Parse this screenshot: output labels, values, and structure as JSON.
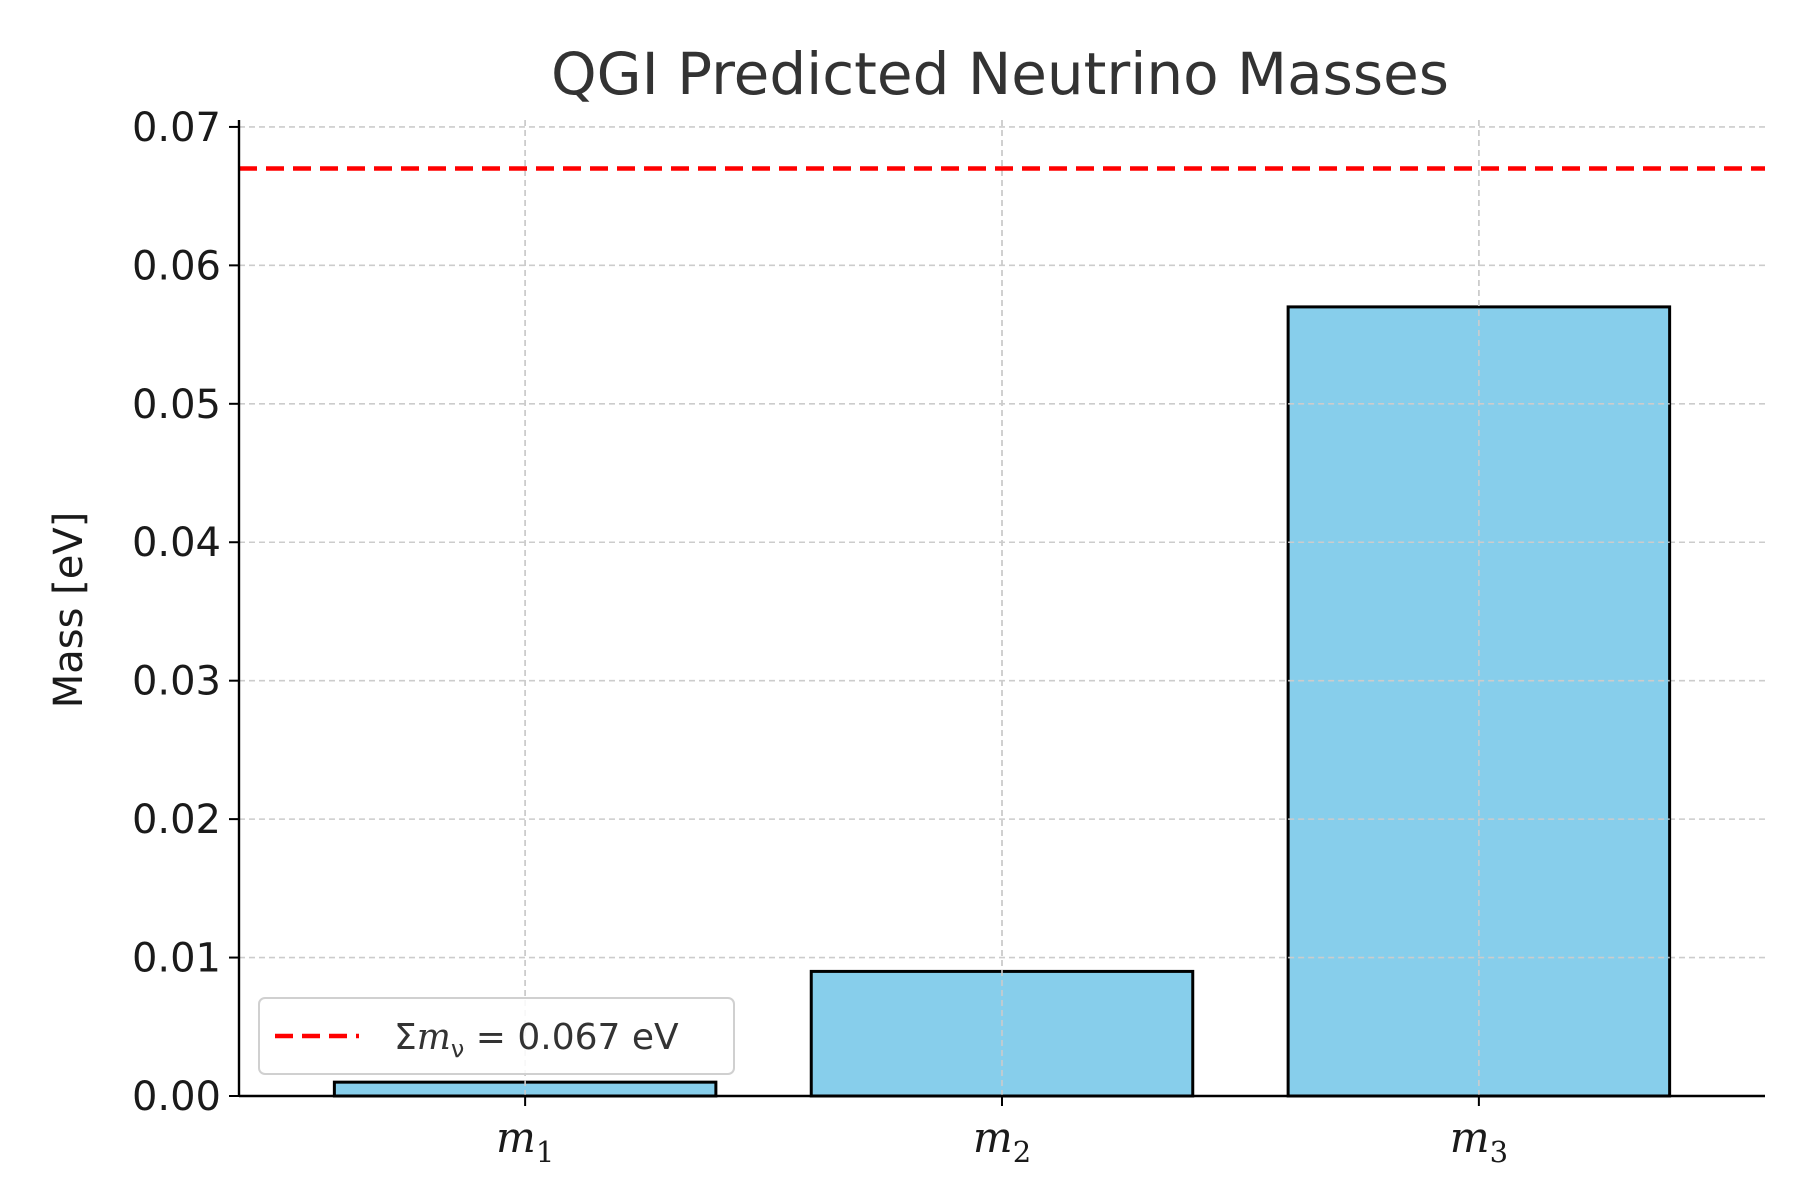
{
  "chart_data": {
    "type": "bar",
    "title": "QGI Predicted Neutrino Masses",
    "xlabel": "",
    "ylabel": "Mass [eV]",
    "categories": [
      {
        "symbol": "m",
        "sub": "1"
      },
      {
        "symbol": "m",
        "sub": "2"
      },
      {
        "symbol": "m",
        "sub": "3"
      }
    ],
    "values": [
      0.001,
      0.009,
      0.057
    ],
    "ylim": [
      0,
      0.0705
    ],
    "yticks": [
      "0.00",
      "0.01",
      "0.02",
      "0.03",
      "0.04",
      "0.05",
      "0.06",
      "0.07"
    ],
    "ytick_values": [
      0,
      0.01,
      0.02,
      0.03,
      0.04,
      0.05,
      0.06,
      0.07
    ],
    "bar_color": "#87CEEB",
    "bar_edge_color": "#000000",
    "grid": true,
    "reference_line": {
      "value": 0.067,
      "color": "#ff0000",
      "style": "dashed",
      "label": {
        "sigma": "Σ",
        "symbol": "m",
        "sub": "ν",
        "eq": " = 0.067 eV"
      }
    },
    "legend_position": "lower-left"
  }
}
